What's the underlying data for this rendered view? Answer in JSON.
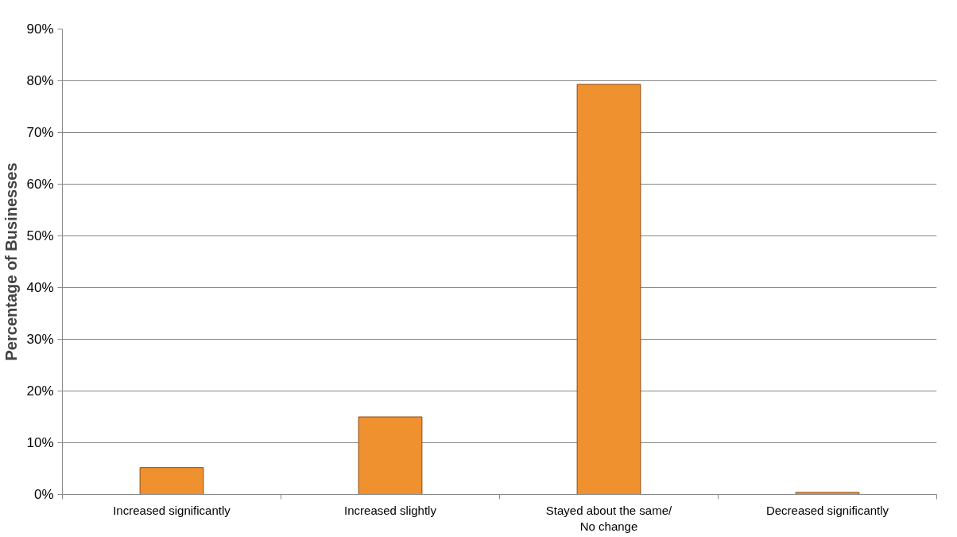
{
  "chart_data": {
    "type": "bar",
    "ylabel": "Percentage of Businesses",
    "categories": [
      "Increased significantly",
      "Increased slightly",
      "Stayed about the same/\nNo change",
      "Decreased significantly"
    ],
    "values": [
      5.2,
      15,
      79.3,
      0.4
    ],
    "color": "#f0912f",
    "ylim": [
      0,
      90
    ],
    "yticks": [
      {
        "value": 0,
        "label": "0%"
      },
      {
        "value": 10,
        "label": "10%"
      },
      {
        "value": 20,
        "label": "20%"
      },
      {
        "value": 30,
        "label": "30%"
      },
      {
        "value": 40,
        "label": "40%"
      },
      {
        "value": 50,
        "label": "50%"
      },
      {
        "value": 60,
        "label": "60%"
      },
      {
        "value": 70,
        "label": "70%"
      },
      {
        "value": 80,
        "label": "80%"
      },
      {
        "value": 90,
        "label": "90%"
      }
    ],
    "grid": "y"
  }
}
